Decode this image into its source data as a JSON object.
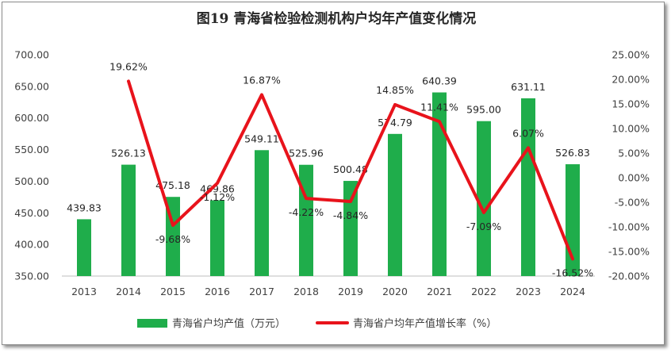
{
  "chart_data": {
    "type": "bar+line",
    "title": "图19  青海省检验检测机构户均年产值变化情况",
    "categories": [
      "2013",
      "2014",
      "2015",
      "2016",
      "2017",
      "2018",
      "2019",
      "2020",
      "2021",
      "2022",
      "2023",
      "2024"
    ],
    "series": [
      {
        "name": "青海省户均产值（万元）",
        "type": "bar",
        "axis": "left",
        "color": "#1fad4b",
        "values": [
          439.83,
          526.13,
          475.18,
          469.86,
          549.11,
          525.96,
          500.48,
          574.79,
          640.39,
          595.0,
          631.11,
          526.83
        ],
        "labels": [
          "439.83",
          "526.13",
          "475.18",
          "469.86",
          "549.11",
          "525.96",
          "500.48",
          "574.79",
          "640.39",
          "595.00",
          "631.11",
          "526.83"
        ]
      },
      {
        "name": "青海省户均年产值增长率（%）",
        "type": "line",
        "axis": "right",
        "color": "#e8131b",
        "values": [
          null,
          19.62,
          -9.68,
          -1.12,
          16.87,
          -4.22,
          -4.84,
          14.85,
          11.41,
          -7.09,
          6.07,
          -16.52
        ],
        "labels": [
          "",
          "19.62%",
          "-9.68%",
          "-1.12%",
          "16.87%",
          "-4.22%",
          "-4.84%",
          "14.85%",
          "11.41%",
          "-7.09%",
          "6.07%",
          "-16.52%"
        ]
      }
    ],
    "y_left": {
      "range": [
        350,
        700
      ],
      "ticks": [
        350,
        400,
        450,
        500,
        550,
        600,
        650,
        700
      ],
      "tick_labels": [
        "350.00",
        "400.00",
        "450.00",
        "500.00",
        "550.00",
        "600.00",
        "650.00",
        "700.00"
      ]
    },
    "y_right": {
      "range": [
        -20,
        25
      ],
      "ticks": [
        -20,
        -15,
        -10,
        -5,
        0,
        5,
        10,
        15,
        20,
        25
      ],
      "tick_labels": [
        "-20.00%",
        "-15.00%",
        "-10.00%",
        "-5.00%",
        "0.00%",
        "5.00%",
        "10.00%",
        "15.00%",
        "20.00%",
        "25.00%"
      ]
    },
    "grid": false,
    "legend_position": "bottom"
  }
}
